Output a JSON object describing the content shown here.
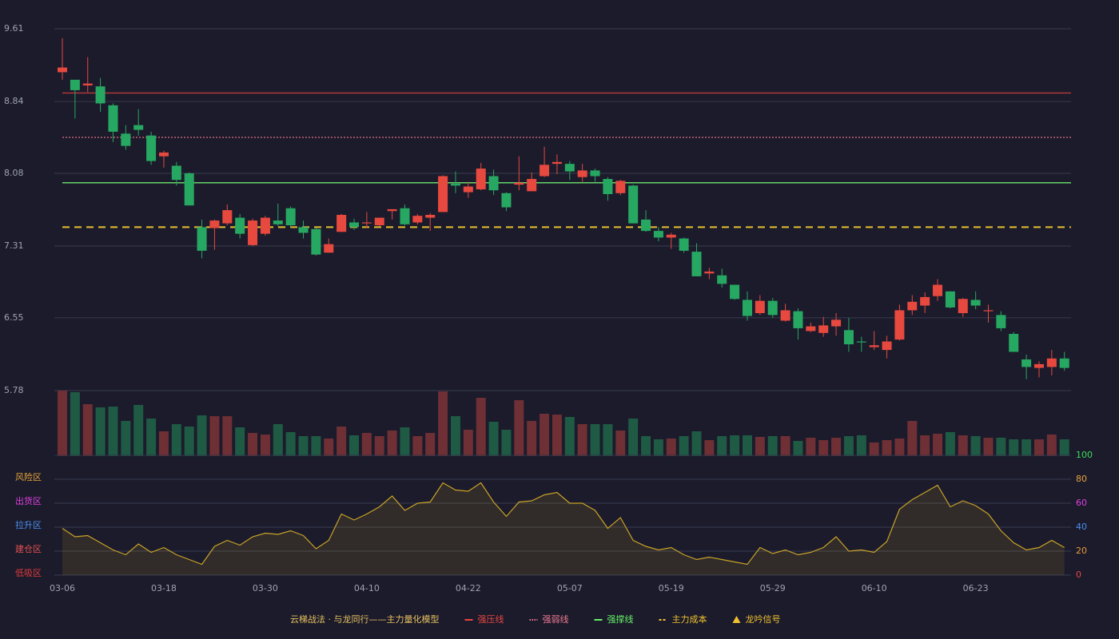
{
  "chart_data": [
    {
      "type": "candlestick",
      "up_color": "#e8493f",
      "down_color": "#27a862",
      "open": [
        9.15,
        9.07,
        9.01,
        9.0,
        8.8,
        8.5,
        8.59,
        8.48,
        8.26,
        8.16,
        8.08,
        7.51,
        7.5,
        7.55,
        7.61,
        7.32,
        7.44,
        7.58,
        7.71,
        7.51,
        7.49,
        7.24,
        7.46,
        7.56,
        7.55,
        7.53,
        7.68,
        7.71,
        7.56,
        7.61,
        7.67,
        7.97,
        7.88,
        7.91,
        8.05,
        7.87,
        7.96,
        7.89,
        8.05,
        8.18,
        8.18,
        8.04,
        8.11,
        8.02,
        7.87,
        7.95,
        7.59,
        7.47,
        7.4,
        7.39,
        7.25,
        7.02,
        7.0,
        6.9,
        6.74,
        6.6,
        6.73,
        6.52,
        6.62,
        6.41,
        6.39,
        6.46,
        6.42,
        6.3,
        6.24,
        6.21,
        6.32,
        6.63,
        6.68,
        6.78,
        6.83,
        6.6,
        6.74,
        6.62,
        6.58,
        6.38,
        6.11,
        6.02,
        6.03,
        6.12
      ],
      "close": [
        9.2,
        8.96,
        9.03,
        8.82,
        8.52,
        8.37,
        8.54,
        8.21,
        8.3,
        8.01,
        7.74,
        7.26,
        7.58,
        7.69,
        7.44,
        7.58,
        7.61,
        7.54,
        7.53,
        7.45,
        7.22,
        7.33,
        7.64,
        7.51,
        7.56,
        7.61,
        7.7,
        7.54,
        7.63,
        7.64,
        8.05,
        7.95,
        7.94,
        8.13,
        7.9,
        7.72,
        7.98,
        8.02,
        8.17,
        8.2,
        8.1,
        8.11,
        8.05,
        7.86,
        8.0,
        7.55,
        7.47,
        7.4,
        7.43,
        7.26,
        6.99,
        7.04,
        6.91,
        6.75,
        6.57,
        6.73,
        6.58,
        6.63,
        6.44,
        6.46,
        6.47,
        6.53,
        6.27,
        6.29,
        6.26,
        6.3,
        6.63,
        6.72,
        6.77,
        6.9,
        6.66,
        6.75,
        6.68,
        6.63,
        6.44,
        6.19,
        6.03,
        6.06,
        6.12,
        6.02
      ],
      "high": [
        9.51,
        9.07,
        9.31,
        9.09,
        8.82,
        8.59,
        8.76,
        8.52,
        8.32,
        8.2,
        8.09,
        7.59,
        7.59,
        7.75,
        7.65,
        7.6,
        7.63,
        7.76,
        7.73,
        7.58,
        7.5,
        7.39,
        7.65,
        7.6,
        7.67,
        7.61,
        7.7,
        7.75,
        7.65,
        7.66,
        8.06,
        8.1,
        7.99,
        8.19,
        8.12,
        7.88,
        8.26,
        8.09,
        8.36,
        8.28,
        8.21,
        8.18,
        8.13,
        8.04,
        8.01,
        7.96,
        7.69,
        7.51,
        7.45,
        7.4,
        7.34,
        7.08,
        7.07,
        6.9,
        6.83,
        6.79,
        6.76,
        6.7,
        6.65,
        6.5,
        6.56,
        6.6,
        6.55,
        6.35,
        6.41,
        6.36,
        6.69,
        6.79,
        6.82,
        6.96,
        6.83,
        6.76,
        6.83,
        6.69,
        6.62,
        6.4,
        6.16,
        6.09,
        6.21,
        6.19
      ],
      "low": [
        9.07,
        8.66,
        8.94,
        8.73,
        8.41,
        8.33,
        8.48,
        8.17,
        8.14,
        7.95,
        7.74,
        7.18,
        7.27,
        7.53,
        7.39,
        7.31,
        7.42,
        7.52,
        7.51,
        7.39,
        7.21,
        7.24,
        7.46,
        7.48,
        7.5,
        7.52,
        7.59,
        7.53,
        7.54,
        7.47,
        7.67,
        7.87,
        7.82,
        7.9,
        7.85,
        7.68,
        7.9,
        7.89,
        8.04,
        8.07,
        8.01,
        7.99,
        7.99,
        7.79,
        7.85,
        7.55,
        7.46,
        7.36,
        7.28,
        7.24,
        6.99,
        6.96,
        6.87,
        6.74,
        6.52,
        6.58,
        6.55,
        6.51,
        6.32,
        6.4,
        6.35,
        6.36,
        6.19,
        6.19,
        6.21,
        6.12,
        6.31,
        6.58,
        6.6,
        6.73,
        6.65,
        6.56,
        6.64,
        6.5,
        6.41,
        6.19,
        5.9,
        5.92,
        5.94,
        5.99
      ],
      "ylim": [
        5.78,
        9.61
      ],
      "yticks": [
        5.78,
        6.55,
        7.31,
        8.08,
        8.84,
        9.61
      ],
      "grid": true,
      "lines": [
        {
          "name": "强压线",
          "value": 8.93,
          "color": "#e84545",
          "line_color": "#b83a3a",
          "style": "solid"
        },
        {
          "name": "强弱线",
          "value": 8.46,
          "color": "#f07890",
          "line_color": "#e07080",
          "style": "dotted"
        },
        {
          "name": "强撑线",
          "value": 7.98,
          "color": "#66ee66",
          "line_color": "#6ee86e",
          "style": "solid"
        },
        {
          "name": "主力成本",
          "value": 7.51,
          "color": "#f0c030",
          "line_color": "#e8c030",
          "style": "dashed"
        }
      ],
      "signal": {
        "name": "龙吟信号",
        "color": "#f0c030",
        "marker": "triangle"
      },
      "legend_title": "云梯战法 · 与龙同行——主力量化模型",
      "legend_title_color": "#e8c060"
    },
    {
      "type": "bar",
      "up_color": "#6e2f35",
      "down_color": "#1f5a44",
      "values": [
        82,
        80,
        65,
        61,
        62,
        44,
        64,
        47,
        31,
        40,
        37,
        51,
        50,
        50,
        36,
        29,
        27,
        40,
        30,
        25,
        25,
        22,
        37,
        26,
        29,
        25,
        32,
        36,
        25,
        29,
        81,
        50,
        33,
        73,
        43,
        33,
        70,
        44,
        53,
        52,
        49,
        40,
        40,
        40,
        32,
        47,
        25,
        21,
        22,
        25,
        31,
        20,
        25,
        26,
        26,
        24,
        25,
        25,
        19,
        23,
        20,
        23,
        25,
        26,
        17,
        20,
        22,
        44,
        26,
        28,
        30,
        26,
        25,
        23,
        23,
        21,
        21,
        21,
        27,
        21
      ],
      "ylim": [
        0,
        82
      ]
    },
    {
      "type": "line",
      "color": "#c9a227",
      "categories": [
        "03-06",
        null,
        null,
        null,
        null,
        null,
        null,
        null,
        "03-18",
        null,
        null,
        null,
        null,
        null,
        null,
        null,
        "03-30",
        null,
        null,
        null,
        null,
        null,
        null,
        null,
        "04-10",
        null,
        null,
        null,
        null,
        null,
        null,
        null,
        "04-22",
        null,
        null,
        null,
        null,
        null,
        null,
        null,
        "05-07",
        null,
        null,
        null,
        null,
        null,
        null,
        null,
        "05-19",
        null,
        null,
        null,
        null,
        null,
        null,
        null,
        "05-29",
        null,
        null,
        null,
        null,
        null,
        null,
        null,
        "06-10",
        null,
        null,
        null,
        null,
        null,
        null,
        null,
        "06-23",
        null,
        null,
        null,
        null,
        null,
        null,
        null
      ],
      "values": [
        39,
        32,
        33,
        27,
        21,
        17,
        26,
        19,
        23,
        17,
        13,
        9,
        24,
        29,
        25,
        32,
        35,
        34,
        37,
        33,
        22,
        29,
        51,
        46,
        51,
        57,
        66,
        54,
        60,
        61,
        77,
        71,
        70,
        77,
        61,
        49,
        61,
        62,
        67,
        69,
        60,
        60,
        54,
        39,
        48,
        29,
        24,
        21,
        23,
        17,
        13,
        15,
        13,
        11,
        9,
        23,
        18,
        21,
        17,
        19,
        23,
        32,
        20,
        21,
        19,
        28,
        55,
        63,
        69,
        75,
        57,
        62,
        58,
        51,
        37,
        27,
        21,
        23,
        29,
        23
      ],
      "ylim": [
        0,
        100
      ],
      "yticks": [
        0,
        20,
        40,
        60,
        80,
        100
      ],
      "ytick_colors": [
        "#e84545",
        "#e89a3a",
        "#4a8ff0",
        "#e040e0",
        "#e8a33a",
        "#3ddc5a"
      ],
      "zones": [
        {
          "label": "风险区",
          "value": 80,
          "color": "#e8a33a"
        },
        {
          "label": "出货区",
          "value": 60,
          "color": "#e040e0"
        },
        {
          "label": "拉升区",
          "value": 40,
          "color": "#4a8ff0"
        },
        {
          "label": "建仓区",
          "value": 20,
          "color": "#e85050"
        },
        {
          "label": "低吸区",
          "value": 0,
          "color": "#e03c3c"
        }
      ]
    }
  ]
}
